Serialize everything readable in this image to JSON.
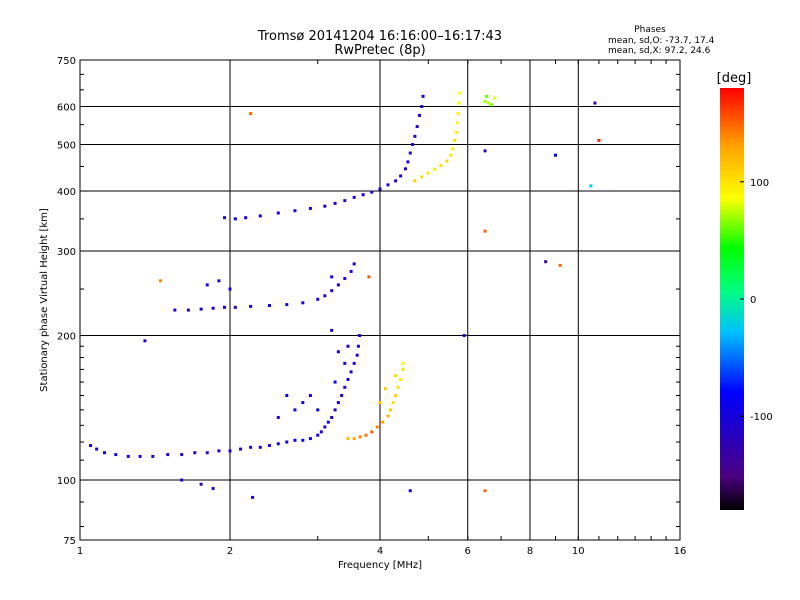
{
  "chart_data": {
    "type": "scatter",
    "title": "Tromsø 20141204 16:16:00–16:17:43",
    "subtitle": "RwPretec (8p)",
    "xlabel": "Frequency [MHz]",
    "ylabel": "Stationary phase Virtual Height [km]",
    "xscale": "log",
    "yscale": "log",
    "xlim": [
      1,
      16
    ],
    "ylim": [
      75,
      750
    ],
    "xticks": [
      1,
      2,
      4,
      6,
      8,
      10,
      16
    ],
    "xtick_labels": [
      "1",
      "2",
      "4",
      "6",
      "8",
      "10",
      "16"
    ],
    "xgrid": [
      2,
      4,
      6,
      8,
      10
    ],
    "yticks": [
      75,
      100,
      200,
      300,
      400,
      500,
      600,
      750
    ],
    "ytick_labels": [
      "75",
      "100",
      "200",
      "300",
      "400",
      "500",
      "600",
      "750"
    ],
    "ygrid": [
      100,
      200,
      300,
      400,
      500,
      600
    ],
    "grid": true,
    "stats": {
      "header": "Phases",
      "line1": "mean, sd,O: -73.7, 17.4",
      "line2": "mean, sd,X:  97.2, 24.6"
    },
    "colorbar": {
      "label": "[deg]",
      "min": -180,
      "max": 180,
      "ticks": [
        100,
        0,
        -100
      ],
      "tick_labels": [
        "100",
        "0",
        "-100"
      ],
      "colormap": [
        "#000000",
        "#4b0082",
        "#0000ff",
        "#00bfff",
        "#00ff7f",
        "#00ff00",
        "#ffff00",
        "#ffa500",
        "#ff0000"
      ]
    },
    "series": [
      {
        "points": [
          [
            1.05,
            118,
            -105
          ],
          [
            1.08,
            116,
            -100
          ],
          [
            1.12,
            114,
            -95
          ],
          [
            1.18,
            113,
            -100
          ],
          [
            1.25,
            112,
            -105
          ],
          [
            1.32,
            112,
            -110
          ],
          [
            1.4,
            112,
            -108
          ],
          [
            1.5,
            113,
            -110
          ],
          [
            1.6,
            113,
            -112
          ],
          [
            1.7,
            114,
            -110
          ],
          [
            1.8,
            114,
            -108
          ],
          [
            1.9,
            115,
            -110
          ],
          [
            2.0,
            115,
            -112
          ],
          [
            2.1,
            116,
            -110
          ],
          [
            2.2,
            117,
            -108
          ],
          [
            2.3,
            117,
            -105
          ],
          [
            2.4,
            118,
            -100
          ],
          [
            2.5,
            119,
            -95
          ],
          [
            2.6,
            120,
            -90
          ],
          [
            2.7,
            121,
            -85
          ],
          [
            2.8,
            121,
            -85
          ],
          [
            2.9,
            122,
            -90
          ],
          [
            3.0,
            124,
            -95
          ],
          [
            3.05,
            126,
            -100
          ],
          [
            3.1,
            129,
            -105
          ],
          [
            3.15,
            132,
            -100
          ],
          [
            3.2,
            135,
            -110
          ],
          [
            3.25,
            140,
            -105
          ],
          [
            3.3,
            145,
            -100
          ],
          [
            3.35,
            150,
            -110
          ],
          [
            3.4,
            156,
            -105
          ],
          [
            3.45,
            162,
            -112
          ],
          [
            3.5,
            168,
            -108
          ],
          [
            3.55,
            175,
            -110
          ],
          [
            3.6,
            182,
            -105
          ],
          [
            3.62,
            190,
            -108
          ],
          [
            3.64,
            200,
            -110
          ],
          [
            3.2,
            205,
            -100
          ],
          [
            3.3,
            185,
            -95
          ],
          [
            3.25,
            160,
            -90
          ],
          [
            3.4,
            175,
            -100
          ],
          [
            3.45,
            190,
            -105
          ],
          [
            2.6,
            150,
            -95
          ],
          [
            2.8,
            145,
            -100
          ],
          [
            3.0,
            140,
            -92
          ],
          [
            2.9,
            150,
            -95
          ],
          [
            2.7,
            140,
            -90
          ],
          [
            2.5,
            135,
            -98
          ]
        ]
      },
      {
        "points": [
          [
            3.45,
            122,
            120
          ],
          [
            3.55,
            122,
            130
          ],
          [
            3.65,
            123,
            140
          ],
          [
            3.75,
            124,
            145
          ],
          [
            3.85,
            126,
            150
          ],
          [
            3.95,
            129,
            140
          ],
          [
            4.05,
            132,
            130
          ],
          [
            4.15,
            136,
            120
          ],
          [
            4.2,
            140,
            110
          ],
          [
            4.25,
            145,
            100
          ],
          [
            4.3,
            150,
            105
          ],
          [
            4.35,
            156,
            100
          ],
          [
            4.4,
            162,
            95
          ],
          [
            4.45,
            170,
            100
          ],
          [
            4.0,
            145,
            115
          ],
          [
            4.1,
            155,
            110
          ],
          [
            4.3,
            165,
            105
          ],
          [
            4.45,
            175,
            90
          ]
        ]
      },
      {
        "points": [
          [
            1.55,
            226,
            -105
          ],
          [
            1.65,
            226,
            -108
          ],
          [
            1.75,
            227,
            -110
          ],
          [
            1.85,
            228,
            -108
          ],
          [
            1.95,
            229,
            -105
          ],
          [
            2.05,
            229,
            -102
          ],
          [
            2.2,
            230,
            -100
          ],
          [
            2.4,
            231,
            -98
          ],
          [
            2.6,
            232,
            -100
          ],
          [
            2.8,
            234,
            -102
          ],
          [
            3.0,
            238,
            -105
          ],
          [
            3.1,
            242,
            -108
          ],
          [
            3.2,
            248,
            -110
          ],
          [
            3.3,
            255,
            -112
          ],
          [
            3.4,
            263,
            -110
          ],
          [
            3.5,
            272,
            -108
          ],
          [
            3.55,
            282,
            -110
          ],
          [
            1.8,
            255,
            -100
          ],
          [
            1.9,
            260,
            -104
          ],
          [
            2.0,
            250,
            -98
          ],
          [
            3.2,
            265,
            -105
          ]
        ]
      },
      {
        "points": [
          [
            1.95,
            352,
            -100
          ],
          [
            2.05,
            350,
            -95
          ],
          [
            2.15,
            352,
            -95
          ],
          [
            2.3,
            355,
            -92
          ],
          [
            2.5,
            360,
            -95
          ],
          [
            2.7,
            364,
            -98
          ],
          [
            2.9,
            368,
            -100
          ],
          [
            3.1,
            372,
            -102
          ],
          [
            3.25,
            377,
            -105
          ],
          [
            3.4,
            382,
            -108
          ],
          [
            3.55,
            388,
            -110
          ],
          [
            3.7,
            393,
            -112
          ],
          [
            3.85,
            398,
            -110
          ],
          [
            4.0,
            404,
            -112
          ],
          [
            4.15,
            412,
            -110
          ],
          [
            4.3,
            420,
            -108
          ],
          [
            4.4,
            430,
            -105
          ],
          [
            4.5,
            445,
            -100
          ],
          [
            4.55,
            460,
            -105
          ],
          [
            4.6,
            480,
            -110
          ],
          [
            4.65,
            500,
            -108
          ],
          [
            4.7,
            520,
            -110
          ],
          [
            4.75,
            545,
            -112
          ],
          [
            4.8,
            575,
            -110
          ],
          [
            4.85,
            600,
            -108
          ],
          [
            4.88,
            630,
            -110
          ]
        ]
      },
      {
        "points": [
          [
            4.7,
            420,
            110
          ],
          [
            4.85,
            428,
            105
          ],
          [
            5.0,
            436,
            100
          ],
          [
            5.15,
            444,
            95
          ],
          [
            5.3,
            452,
            100
          ],
          [
            5.45,
            462,
            105
          ],
          [
            5.55,
            475,
            100
          ],
          [
            5.6,
            490,
            95
          ],
          [
            5.65,
            510,
            100
          ],
          [
            5.7,
            530,
            95
          ],
          [
            5.72,
            555,
            90
          ],
          [
            5.74,
            580,
            92
          ],
          [
            5.76,
            610,
            88
          ],
          [
            5.78,
            640,
            85
          ],
          [
            6.5,
            615,
            70
          ],
          [
            6.6,
            610,
            75
          ],
          [
            6.7,
            605,
            65
          ],
          [
            6.8,
            625,
            80
          ],
          [
            6.55,
            630,
            60
          ]
        ]
      },
      {
        "points": [
          [
            1.45,
            260,
            140
          ],
          [
            1.6,
            100,
            -110
          ],
          [
            1.75,
            98,
            -120
          ],
          [
            1.85,
            96,
            -115
          ],
          [
            2.22,
            92,
            -110
          ],
          [
            2.2,
            580,
            150
          ],
          [
            5.9,
            200,
            -110
          ],
          [
            6.5,
            485,
            -120
          ],
          [
            6.5,
            330,
            150
          ],
          [
            8.6,
            285,
            -140
          ],
          [
            9.2,
            280,
            150
          ],
          [
            10.8,
            610,
            -130
          ],
          [
            11.0,
            510,
            170
          ],
          [
            10.6,
            410,
            -20
          ],
          [
            9.0,
            475,
            -80
          ],
          [
            6.5,
            95,
            150
          ],
          [
            4.6,
            95,
            -110
          ],
          [
            3.8,
            265,
            155
          ],
          [
            1.35,
            195,
            -110
          ]
        ]
      }
    ]
  }
}
